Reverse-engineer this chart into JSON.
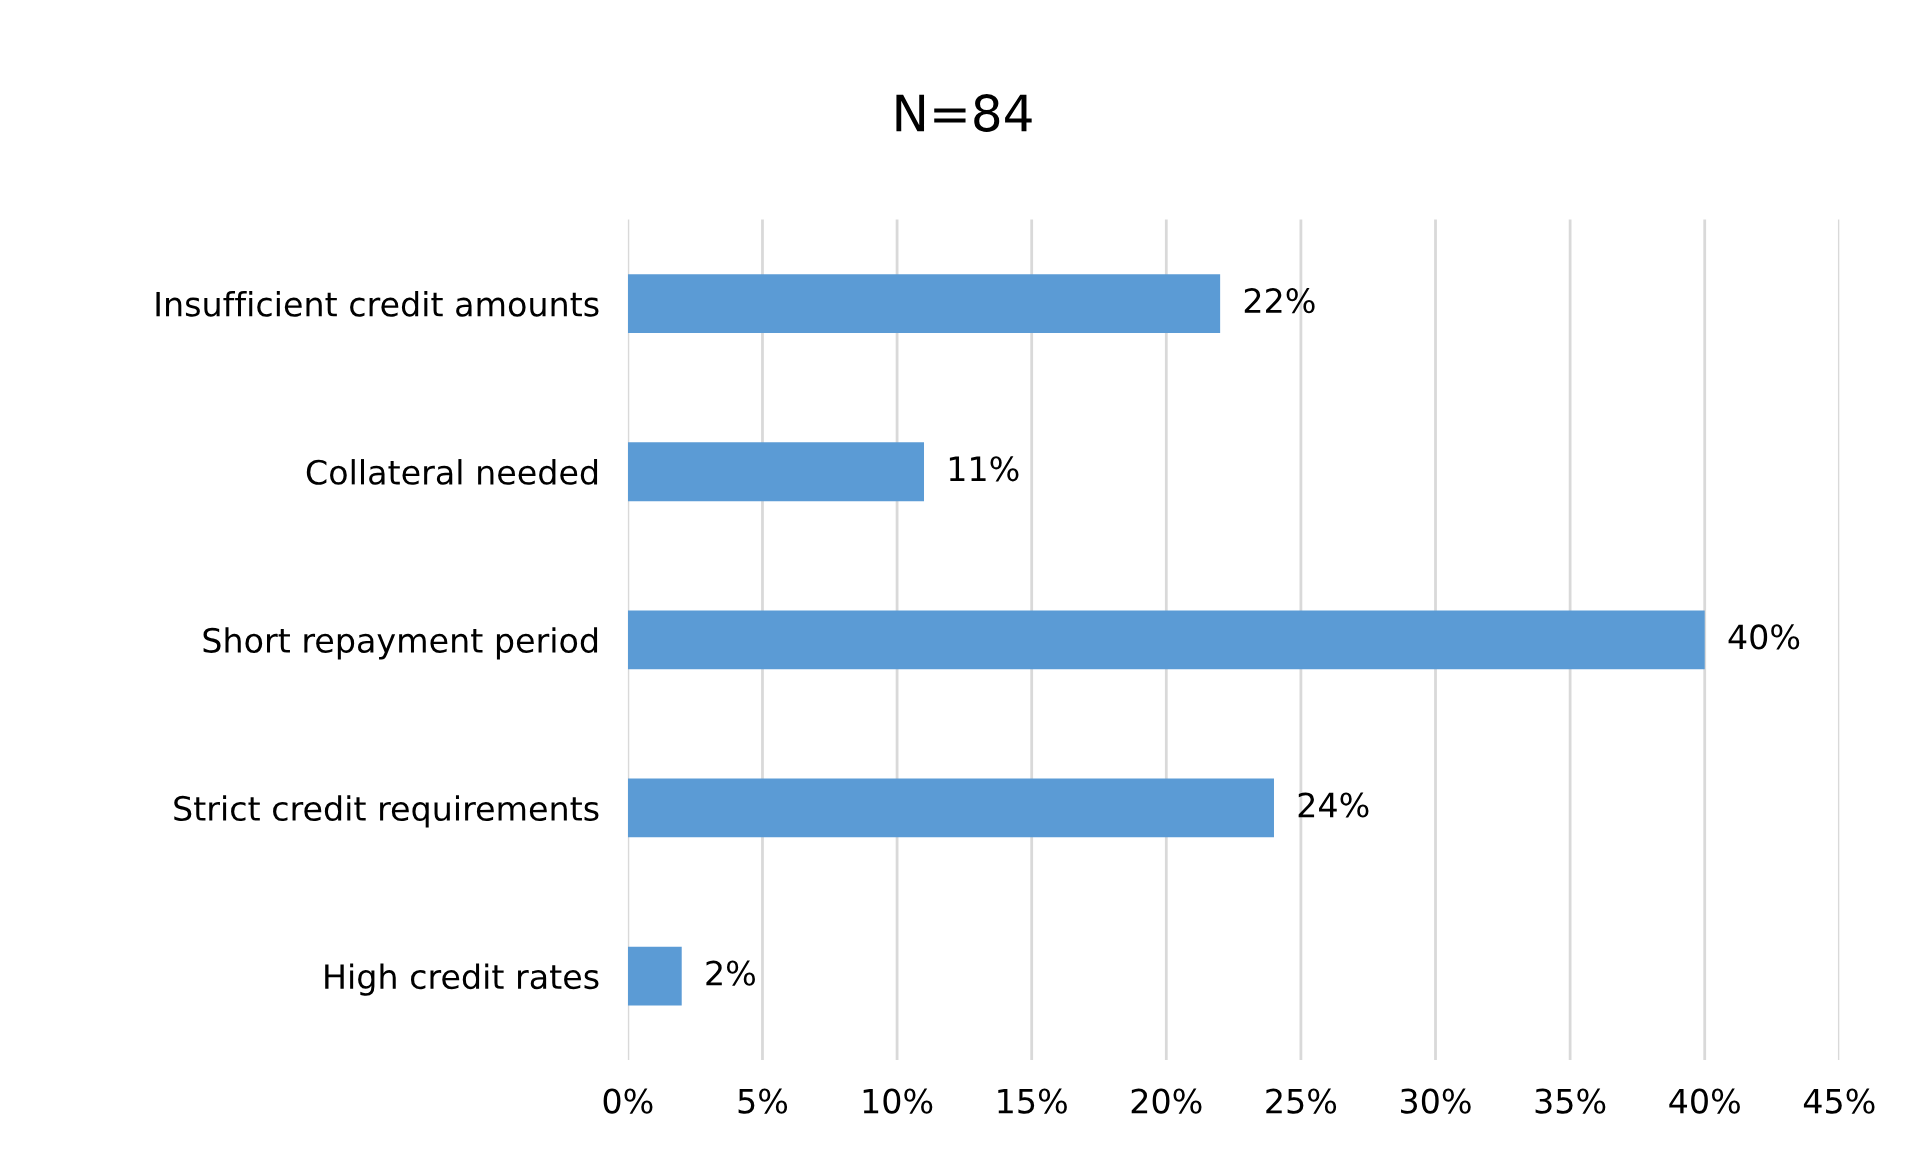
{
  "chart_data": {
    "type": "bar",
    "orientation": "horizontal",
    "title": "N=84",
    "categories": [
      "Insufficient credit amounts",
      "Collateral needed",
      "Short repayment period",
      "Strict credit requirements",
      "High credit rates"
    ],
    "values": [
      22,
      11,
      40,
      24,
      2
    ],
    "value_labels": [
      "22%",
      "11%",
      "40%",
      "24%",
      "2%"
    ],
    "color": "#5b9bd5",
    "xlim": [
      0,
      45
    ],
    "xticks": [
      {
        "value": 0,
        "label": "0%"
      },
      {
        "value": 5,
        "label": "5%"
      },
      {
        "value": 10,
        "label": "10%"
      },
      {
        "value": 15,
        "label": "15%"
      },
      {
        "value": 20,
        "label": "20%"
      },
      {
        "value": 25,
        "label": "25%"
      },
      {
        "value": 30,
        "label": "30%"
      },
      {
        "value": 35,
        "label": "35%"
      },
      {
        "value": 40,
        "label": "40%"
      },
      {
        "value": 45,
        "label": "45%"
      }
    ],
    "grid": "x",
    "legend": false
  }
}
